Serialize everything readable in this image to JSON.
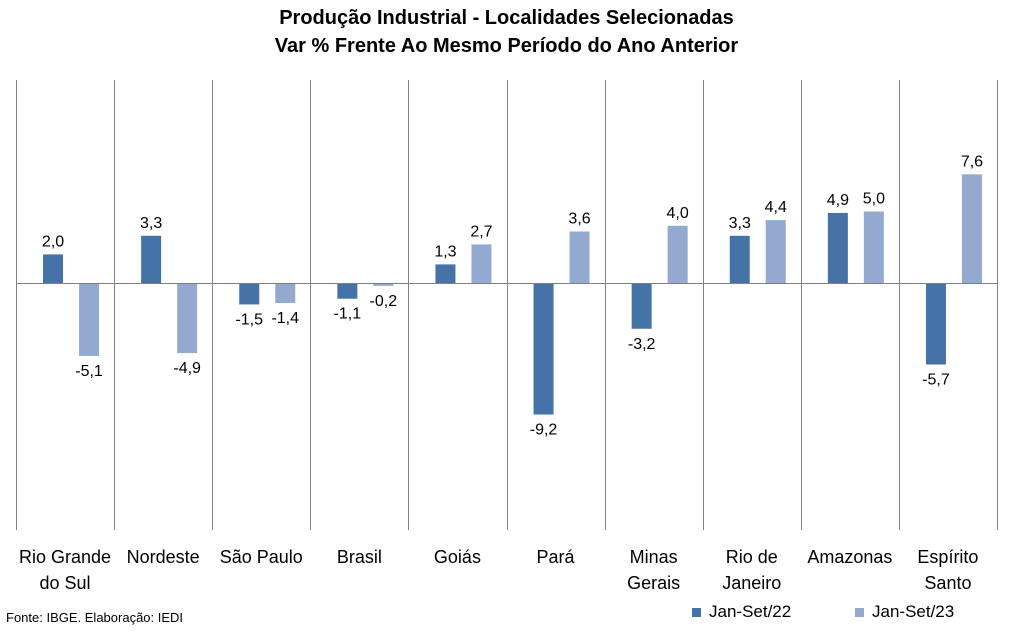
{
  "title": "Produção Industrial - Localidades Selecionadas",
  "subtitle": "Var % Frente Ao Mesmo Período do Ano Anterior",
  "source": "Fonte: IBGE. Elaboração: IEDI",
  "colors": {
    "series1": "#4572A7",
    "series2": "#93A9CF",
    "grid": "#808080"
  },
  "chart_data": {
    "type": "bar",
    "title": "Produção Industrial - Localidades Selecionadas",
    "subtitle": "Var % Frente Ao Mesmo Período do Ano Anterior",
    "categories": [
      [
        "Rio Grande",
        "do Sul"
      ],
      [
        "Nordeste"
      ],
      [
        "São Paulo"
      ],
      [
        "Brasil"
      ],
      [
        "Goiás"
      ],
      [
        "Pará"
      ],
      [
        "Minas",
        "Gerais"
      ],
      [
        "Rio de",
        "Janeiro"
      ],
      [
        "Amazonas"
      ],
      [
        "Espírito",
        "Santo"
      ]
    ],
    "series": [
      {
        "name": "Jan-Set/22",
        "values": [
          2.0,
          3.3,
          -1.5,
          -1.1,
          1.3,
          -9.2,
          -3.2,
          3.3,
          4.9,
          -5.7
        ],
        "labels": [
          "2,0",
          "3,3",
          "-1,5",
          "-1,1",
          "1,3",
          "-9,2",
          "-3,2",
          "3,3",
          "4,9",
          "-5,7"
        ]
      },
      {
        "name": "Jan-Set/23",
        "values": [
          -5.1,
          -4.9,
          -1.4,
          -0.2,
          2.7,
          3.6,
          4.0,
          4.4,
          5.0,
          7.6
        ],
        "labels": [
          "-5,1",
          "-4,9",
          "-1,4",
          "-0,2",
          "2,7",
          "3,6",
          "4,0",
          "4,4",
          "5,0",
          "7,6"
        ]
      }
    ],
    "ylim": [
      -11.0,
      9.0
    ],
    "grid": "vertical separators",
    "legend": "bottom-right"
  }
}
